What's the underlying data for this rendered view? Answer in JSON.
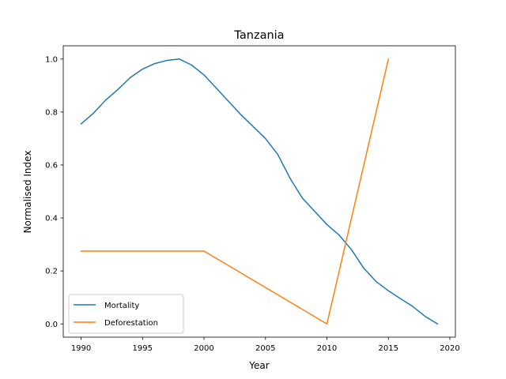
{
  "chart_data": {
    "type": "line",
    "title": "Tanzania",
    "xlabel": "Year",
    "ylabel": "Normalised Index",
    "xlim": [
      1988.55,
      2020.45
    ],
    "ylim": [
      -0.05,
      1.05
    ],
    "xticks": [
      1990,
      1995,
      2000,
      2005,
      2010,
      2015,
      2020
    ],
    "yticks": [
      0.0,
      0.2,
      0.4,
      0.6,
      0.8,
      1.0
    ],
    "xtick_labels": [
      "1990",
      "1995",
      "2000",
      "2005",
      "2010",
      "2015",
      "2020"
    ],
    "ytick_labels": [
      "0.0",
      "0.2",
      "0.4",
      "0.6",
      "0.8",
      "1.0"
    ],
    "grid": false,
    "legend_position": "lower-left",
    "series": [
      {
        "name": "Mortality",
        "color": "#1f77b4",
        "x": [
          1990,
          1991,
          1992,
          1993,
          1994,
          1995,
          1996,
          1997,
          1998,
          1999,
          2000,
          2001,
          2002,
          2003,
          2004,
          2005,
          2006,
          2007,
          2008,
          2009,
          2010,
          2011,
          2012,
          2013,
          2014,
          2015,
          2016,
          2017,
          2018,
          2019
        ],
        "y": [
          0.755,
          0.795,
          0.845,
          0.885,
          0.93,
          0.962,
          0.983,
          0.995,
          1.0,
          0.977,
          0.94,
          0.89,
          0.84,
          0.79,
          0.745,
          0.7,
          0.64,
          0.55,
          0.475,
          0.425,
          0.375,
          0.335,
          0.28,
          0.21,
          0.16,
          0.125,
          0.095,
          0.065,
          0.028,
          0.0
        ]
      },
      {
        "name": "Deforestation",
        "color": "#ff7f0e",
        "x": [
          1990,
          2000,
          2010,
          2015
        ],
        "y": [
          0.275,
          0.275,
          0.0,
          1.0
        ]
      }
    ]
  }
}
